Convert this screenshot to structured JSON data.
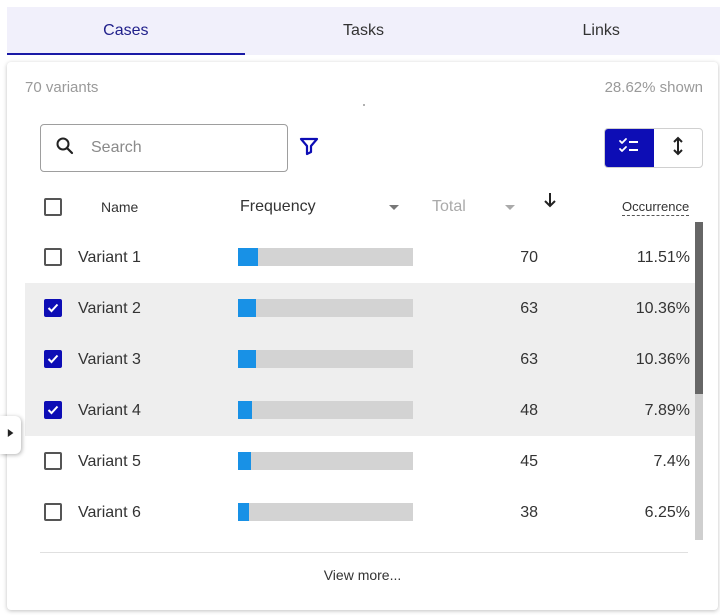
{
  "tabs": [
    {
      "label": "Cases",
      "active": true
    },
    {
      "label": "Tasks",
      "active": false
    },
    {
      "label": "Links",
      "active": false
    }
  ],
  "summary": {
    "variants_count": "70 variants",
    "shown": "28.62% shown"
  },
  "search": {
    "placeholder": "Search",
    "value": ""
  },
  "columns": {
    "name": "Name",
    "frequency": "Frequency",
    "total": "Total",
    "occurrence": "Occurrence"
  },
  "rows": [
    {
      "name": "Variant 1",
      "total": "70",
      "occurrence": "11.51%",
      "checked": false,
      "bar_fraction": 0.1151
    },
    {
      "name": "Variant 2",
      "total": "63",
      "occurrence": "10.36%",
      "checked": true,
      "bar_fraction": 0.1036
    },
    {
      "name": "Variant 3",
      "total": "63",
      "occurrence": "10.36%",
      "checked": true,
      "bar_fraction": 0.1036
    },
    {
      "name": "Variant 4",
      "total": "48",
      "occurrence": "7.89%",
      "checked": true,
      "bar_fraction": 0.0789
    },
    {
      "name": "Variant 5",
      "total": "45",
      "occurrence": "7.4%",
      "checked": false,
      "bar_fraction": 0.074
    },
    {
      "name": "Variant 6",
      "total": "38",
      "occurrence": "6.25%",
      "checked": false,
      "bar_fraction": 0.0625
    }
  ],
  "footer": {
    "view_more": "View more..."
  },
  "colors": {
    "accent": "#0d0db5",
    "bar_fill": "#1891e6",
    "bar_track": "#d3d3d3",
    "selected_row": "#eeeeee",
    "tab_bar": "#f1f0fb"
  }
}
